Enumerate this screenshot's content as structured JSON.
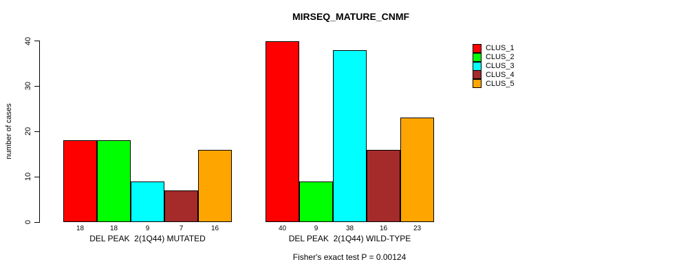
{
  "chart_data": {
    "type": "bar",
    "title": "MIRSEQ_MATURE_CNMF",
    "ylabel": "number of cases",
    "xlabel": "",
    "ylim": [
      0,
      40
    ],
    "yticks": [
      0,
      10,
      20,
      30,
      40
    ],
    "grid": false,
    "legend_position": "right",
    "bar_value_labels_shown": true,
    "categories": [
      "DEL PEAK  2(1Q44) MUTATED",
      "DEL PEAK  2(1Q44) WILD-TYPE"
    ],
    "series": [
      {
        "name": "CLUS_1",
        "color": "#FF0000",
        "values": [
          18,
          40
        ]
      },
      {
        "name": "CLUS_2",
        "color": "#00FF00",
        "values": [
          18,
          9
        ]
      },
      {
        "name": "CLUS_3",
        "color": "#00FFFF",
        "values": [
          9,
          38
        ]
      },
      {
        "name": "CLUS_4",
        "color": "#A52A2A",
        "values": [
          7,
          16
        ]
      },
      {
        "name": "CLUS_5",
        "color": "#FFA500",
        "values": [
          16,
          23
        ]
      }
    ],
    "annotation": "Fisher's exact test P = 0.00124"
  }
}
